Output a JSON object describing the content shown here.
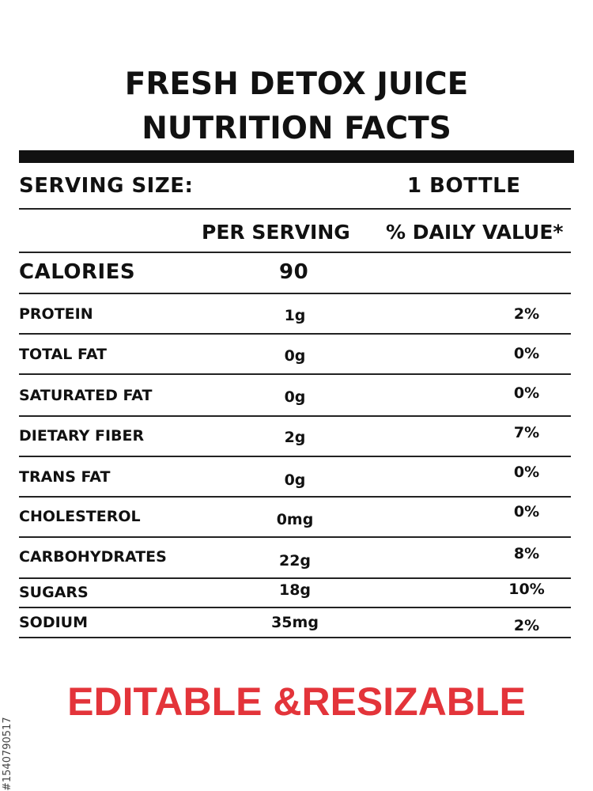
{
  "title": {
    "line1": "FRESH DETOX JUICE",
    "line2": "NUTRITION FACTS"
  },
  "serving": {
    "label": "SERVING SIZE:",
    "value": "1 BOTTLE"
  },
  "columns": {
    "per_serving": "PER SERVING",
    "daily_value": "% DAILY VALUE*"
  },
  "calories": {
    "label": "CALORIES",
    "value": "90"
  },
  "nutrients": [
    {
      "name": "PROTEIN",
      "amount": "1g",
      "dv": "2%"
    },
    {
      "name": "TOTAL FAT",
      "amount": "0g",
      "dv": "0%"
    },
    {
      "name": "SATURATED FAT",
      "amount": "0g",
      "dv": "0%"
    },
    {
      "name": "DIETARY FIBER",
      "amount": "2g",
      "dv": "7%"
    },
    {
      "name": "TRANS FAT",
      "amount": "0g",
      "dv": "0%"
    },
    {
      "name": "CHOLESTEROL",
      "amount": "0mg",
      "dv": "0%"
    },
    {
      "name": "CARBOHYDRATES",
      "amount": "22g",
      "dv": "8%"
    },
    {
      "name": "SUGARS",
      "amount": "18g",
      "dv": "10%"
    },
    {
      "name": "SODIUM",
      "amount": "35mg",
      "dv": "2%"
    }
  ],
  "footer": {
    "text": "EDITABLE &RESIZABLE",
    "color": "#e3343a"
  },
  "stock_id": "#1540790517"
}
